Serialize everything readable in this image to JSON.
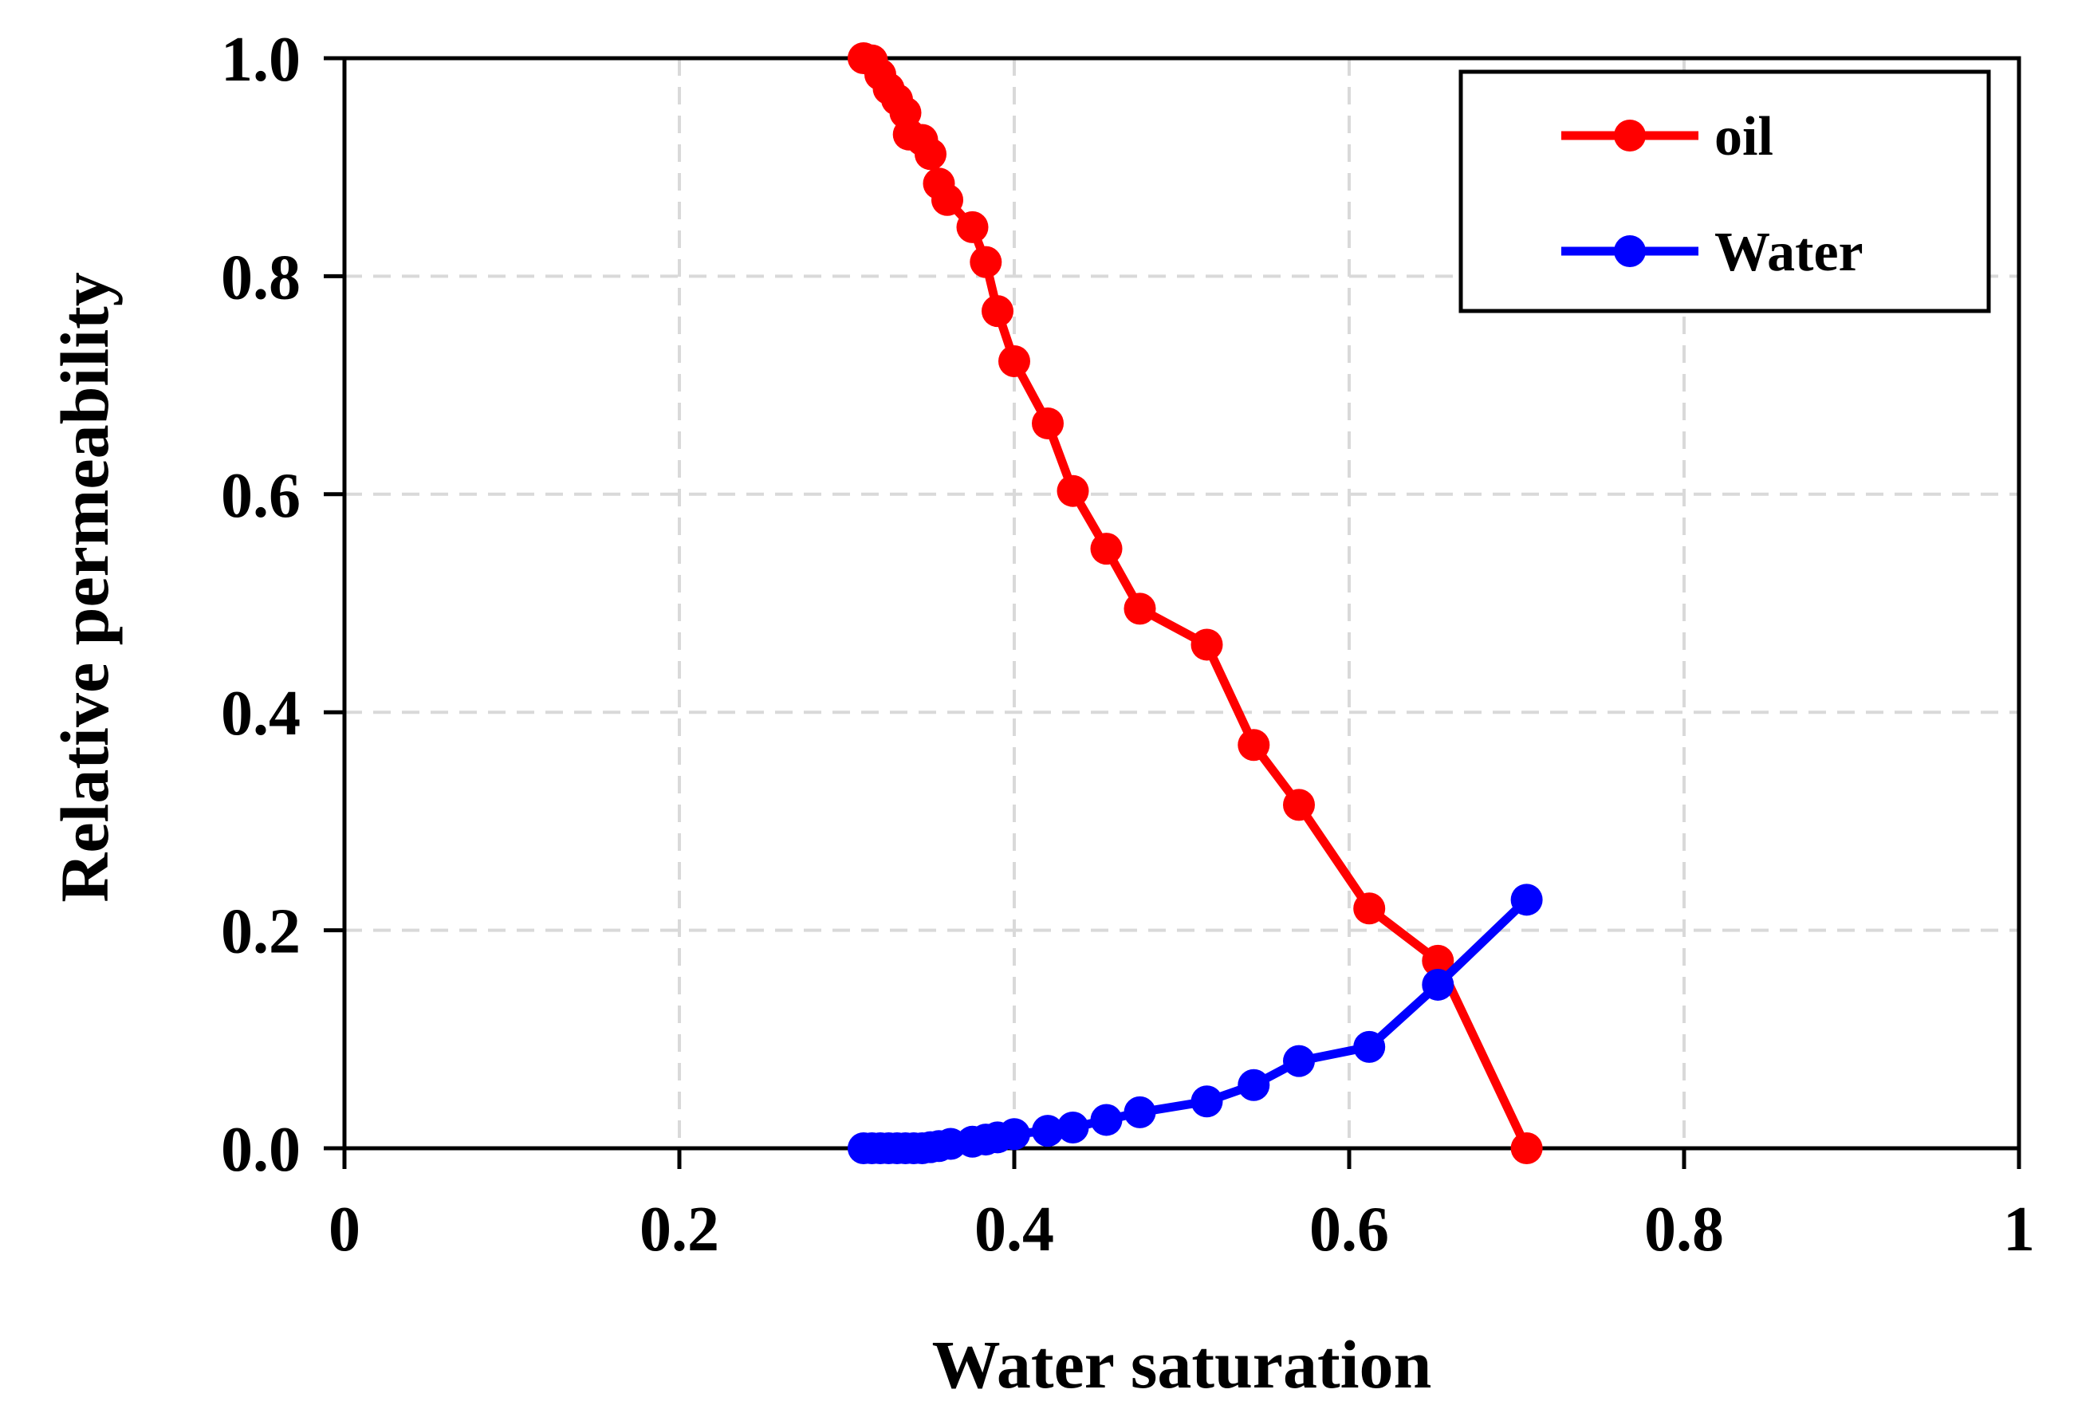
{
  "chart_data": {
    "type": "line",
    "title": "",
    "xlabel": "Water saturation",
    "ylabel": "Relative permeability",
    "xlim": [
      0,
      1
    ],
    "ylim": [
      0,
      1
    ],
    "xticks": [
      0,
      0.2,
      0.4,
      0.6,
      0.8,
      1
    ],
    "yticks": [
      0,
      0.2,
      0.4,
      0.6,
      0.8,
      1
    ],
    "xtick_labels": [
      "0",
      "0.2",
      "0.4",
      "0.6",
      "0.8",
      "1"
    ],
    "ytick_labels": [
      "0.0",
      "0.2",
      "0.4",
      "0.6",
      "0.8",
      "1.0"
    ],
    "grid": true,
    "legend_position": "top-right",
    "series": [
      {
        "name": "oil",
        "color": "#ff0000",
        "x": [
          0.31,
          0.315,
          0.32,
          0.325,
          0.33,
          0.335,
          0.337,
          0.345,
          0.35,
          0.355,
          0.36,
          0.375,
          0.383,
          0.39,
          0.4,
          0.42,
          0.435,
          0.455,
          0.475,
          0.515,
          0.543,
          0.57,
          0.612,
          0.653,
          0.706
        ],
        "values": [
          1.0,
          0.998,
          0.985,
          0.972,
          0.962,
          0.95,
          0.93,
          0.925,
          0.912,
          0.885,
          0.87,
          0.845,
          0.813,
          0.768,
          0.722,
          0.665,
          0.603,
          0.55,
          0.495,
          0.462,
          0.37,
          0.315,
          0.22,
          0.172,
          0.0
        ]
      },
      {
        "name": "Water",
        "color": "#0000ff",
        "x": [
          0.31,
          0.315,
          0.32,
          0.325,
          0.33,
          0.335,
          0.34,
          0.345,
          0.35,
          0.355,
          0.362,
          0.375,
          0.383,
          0.39,
          0.4,
          0.42,
          0.435,
          0.455,
          0.475,
          0.515,
          0.543,
          0.57,
          0.612,
          0.653,
          0.706
        ],
        "values": [
          0.0,
          0.0,
          0.0,
          0.0,
          0.0,
          0.0,
          0.0,
          0.0,
          0.001,
          0.002,
          0.004,
          0.006,
          0.008,
          0.01,
          0.013,
          0.016,
          0.019,
          0.026,
          0.033,
          0.043,
          0.058,
          0.08,
          0.093,
          0.15,
          0.228
        ]
      }
    ]
  }
}
